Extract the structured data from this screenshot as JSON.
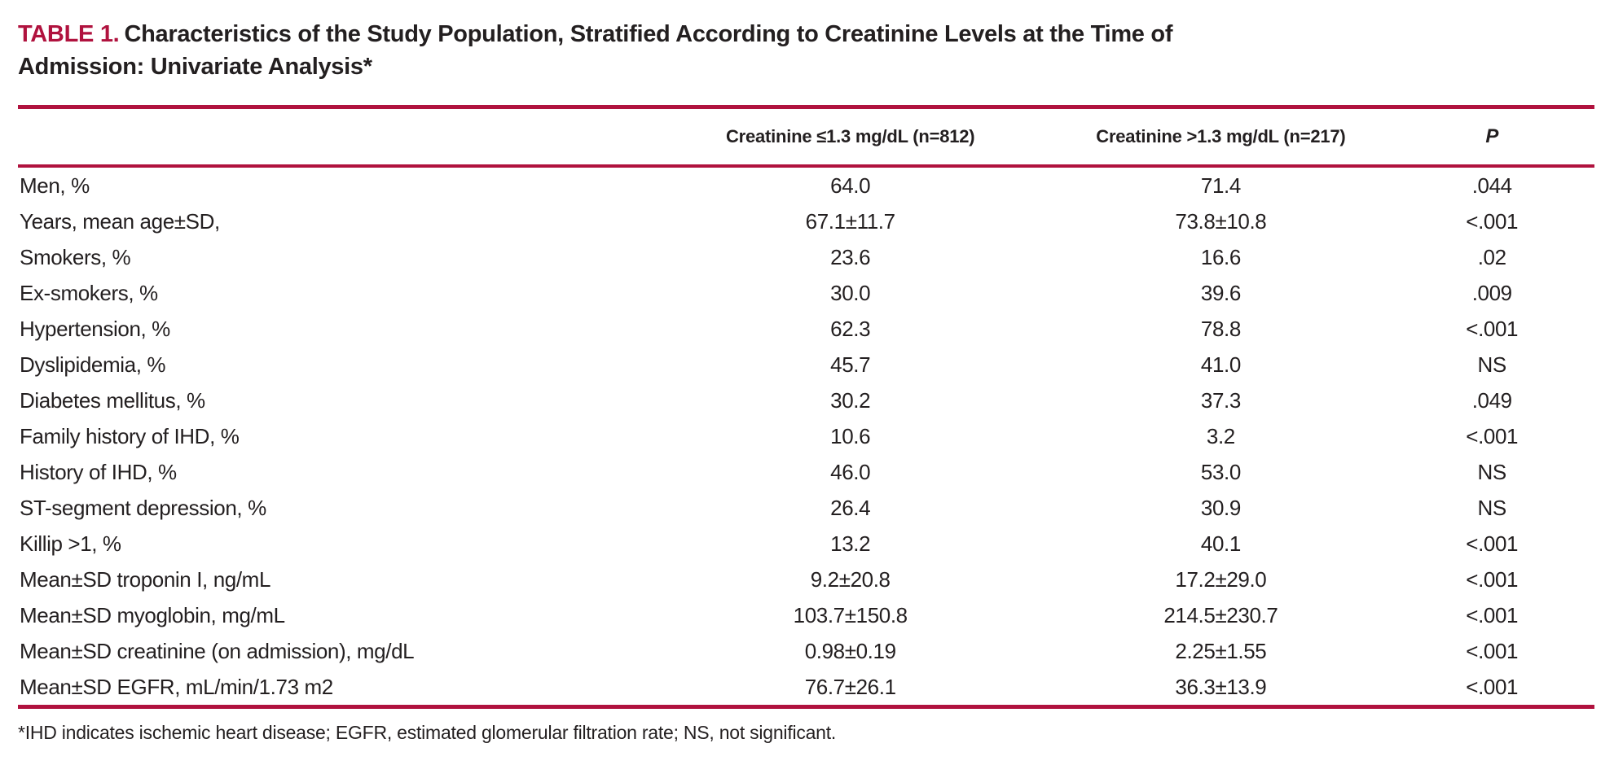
{
  "colors": {
    "accent": "#B0123E",
    "text": "#231F20"
  },
  "title": {
    "label": "TABLE 1.",
    "text": "Characteristics of the Study Population, Stratified According to Creatinine Levels at the Time of Admission: Univariate Analysis*"
  },
  "table": {
    "columns": [
      "",
      "Creatinine ≤1.3 mg/dL (n=812)",
      "Creatinine >1.3 mg/dL (n=217)",
      "P"
    ],
    "rows": [
      {
        "label": "Men, %",
        "c1": "64.0",
        "c2": "71.4",
        "p": ".044"
      },
      {
        "label": "Years, mean age±SD,",
        "c1": "67.1±11.7",
        "c2": "73.8±10.8",
        "p": "<.001"
      },
      {
        "label": "Smokers, %",
        "c1": "23.6",
        "c2": "16.6",
        "p": ".02"
      },
      {
        "label": "Ex-smokers, %",
        "c1": "30.0",
        "c2": "39.6",
        "p": ".009"
      },
      {
        "label": "Hypertension, %",
        "c1": "62.3",
        "c2": "78.8",
        "p": "<.001"
      },
      {
        "label": "Dyslipidemia, %",
        "c1": "45.7",
        "c2": "41.0",
        "p": "NS"
      },
      {
        "label": "Diabetes mellitus, %",
        "c1": "30.2",
        "c2": "37.3",
        "p": ".049"
      },
      {
        "label": "Family history of IHD, %",
        "c1": "10.6",
        "c2": "3.2",
        "p": "<.001"
      },
      {
        "label": "History of IHD, %",
        "c1": "46.0",
        "c2": "53.0",
        "p": "NS"
      },
      {
        "label": "ST-segment depression, %",
        "c1": "26.4",
        "c2": "30.9",
        "p": "NS"
      },
      {
        "label": "Killip >1, %",
        "c1": "13.2",
        "c2": "40.1",
        "p": "<.001"
      },
      {
        "label": "Mean±SD troponin I, ng/mL",
        "c1": "9.2±20.8",
        "c2": "17.2±29.0",
        "p": "<.001"
      },
      {
        "label": "Mean±SD myoglobin, mg/mL",
        "c1": "103.7±150.8",
        "c2": "214.5±230.7",
        "p": "<.001"
      },
      {
        "label": "Mean±SD creatinine (on admission), mg/dL",
        "c1": "0.98±0.19",
        "c2": "2.25±1.55",
        "p": "<.001"
      },
      {
        "label": "Mean±SD EGFR, mL/min/1.73 m2",
        "c1": "76.7±26.1",
        "c2": "36.3±13.9",
        "p": "<.001"
      }
    ]
  },
  "footnote": "*IHD indicates ischemic heart disease; EGFR, estimated glomerular filtration rate; NS, not significant."
}
